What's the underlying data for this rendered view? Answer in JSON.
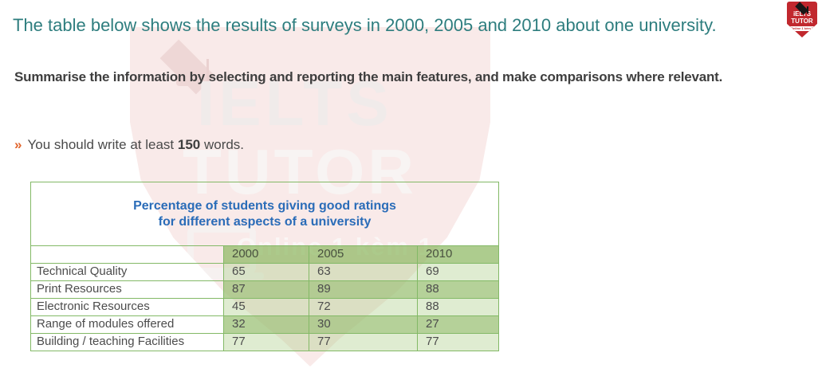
{
  "page": {
    "title": "The table below shows the results of surveys in 2000, 2005 and 2010 about one university.",
    "task_instruction": "Summarise the information by selecting and reporting the main features, and make comparisons where relevant.",
    "word_requirement": {
      "bullet": "»",
      "prefix": "You should write at least ",
      "count": "150",
      "suffix": " words."
    }
  },
  "table": {
    "title_line1": "Percentage of students giving good ratings",
    "title_line2": "for different aspects of a university",
    "columns": [
      "2000",
      "2005",
      "2010"
    ],
    "rows": [
      {
        "label": "Technical Quality",
        "values": [
          "65",
          "63",
          "69"
        ]
      },
      {
        "label": "Print Resources",
        "values": [
          "87",
          "89",
          "88"
        ]
      },
      {
        "label": "Electronic Resources",
        "values": [
          "45",
          "72",
          "88"
        ]
      },
      {
        "label": "Range of modules offered",
        "values": [
          "32",
          "30",
          "27"
        ]
      },
      {
        "label": "Building / teaching Facilities",
        "values": [
          "77",
          "77",
          "77"
        ]
      }
    ]
  },
  "chart_data": {
    "type": "table",
    "title": "Percentage of students giving good ratings for different aspects of a university",
    "categories": [
      "2000",
      "2005",
      "2010"
    ],
    "series": [
      {
        "name": "Technical Quality",
        "values": [
          65,
          63,
          69
        ]
      },
      {
        "name": "Print Resources",
        "values": [
          87,
          89,
          88
        ]
      },
      {
        "name": "Electronic Resources",
        "values": [
          45,
          72,
          88
        ]
      },
      {
        "name": "Range of modules offered",
        "values": [
          32,
          30,
          27
        ]
      },
      {
        "name": "Building / teaching Facilities",
        "values": [
          77,
          77,
          77
        ]
      }
    ]
  },
  "watermark": {
    "brand_line1": "IELTS",
    "brand_line2": "TUTOR",
    "tagline": "Online 1 kèm 1"
  },
  "logo": {
    "line1": "iELTS",
    "line2": "TUTOR",
    "banner": "Online 1 kèm 1"
  },
  "colors": {
    "title_teal": "#2d7d7e",
    "body_text": "#3e3e3e",
    "bullet_orange": "#e2662e",
    "table_title_blue": "#2a6cb8",
    "table_border_green": "#83b966",
    "header_green": "#adcc8e",
    "row_dark_green": "#b5d199",
    "row_light_green": "#dfecd1",
    "watermark_pink": "#f9eae9",
    "brand_red": "#c1282e"
  }
}
